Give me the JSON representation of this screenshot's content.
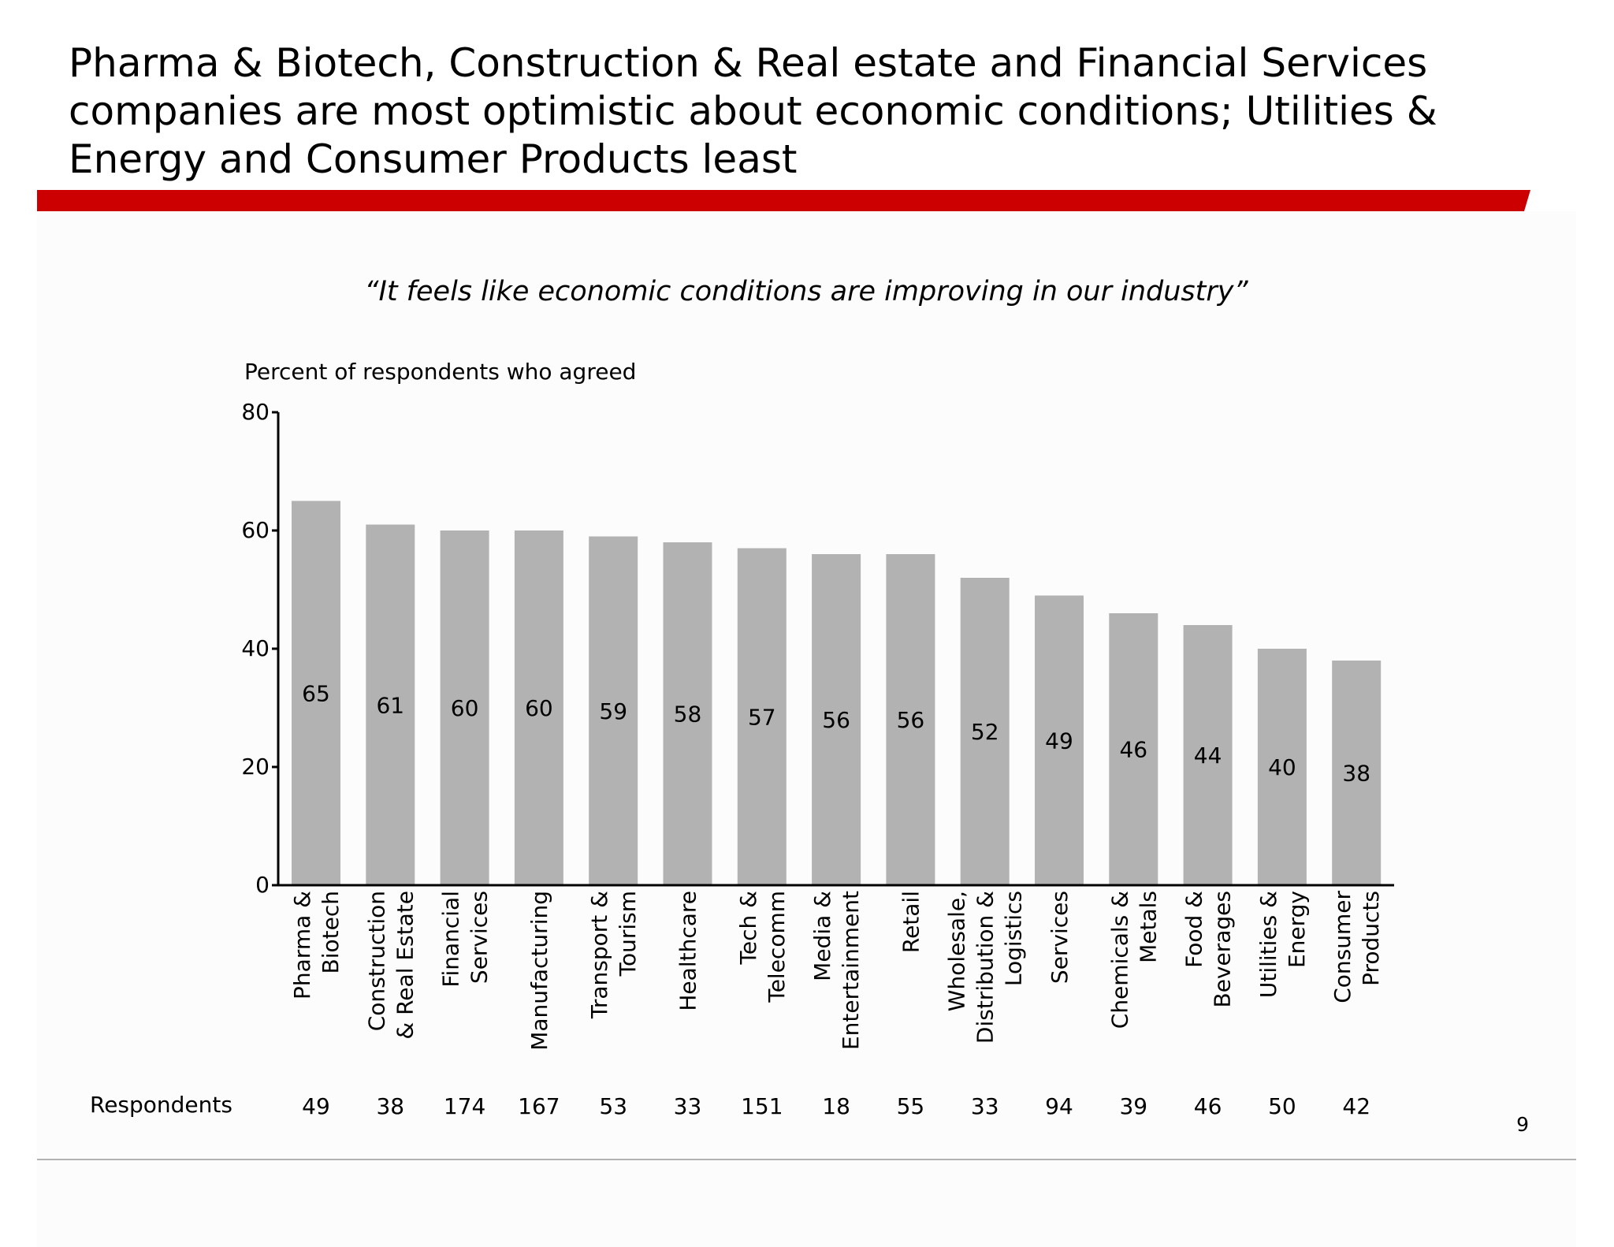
{
  "title": "Pharma & Biotech, Construction & Real estate and Financial Services companies are most optimistic about economic conditions; Utilities & Energy and Consumer Products least",
  "colors": {
    "accent_bar": "#cc0000",
    "bar_fill": "#b3b2b3",
    "rule": "#b3b3b3"
  },
  "page_number": "9",
  "respondents_label": "Respondents",
  "chart_data": {
    "type": "bar",
    "title": "“It feels like economic conditions are improving in our industry”",
    "ylabel": "Percent of respondents who agreed",
    "xlabel": "",
    "ylim": [
      0,
      80
    ],
    "yticks": [
      0,
      20,
      40,
      60,
      80
    ],
    "grid": false,
    "categories": [
      [
        "Pharma &",
        "Biotech"
      ],
      [
        "Construction",
        "& Real Estate"
      ],
      [
        "Financial",
        "Services"
      ],
      [
        "Manufacturing"
      ],
      [
        "Transport &",
        "Tourism"
      ],
      [
        "Healthcare"
      ],
      [
        "Tech &",
        "Telecomm"
      ],
      [
        "Media &",
        "Entertainment"
      ],
      [
        "Retail"
      ],
      [
        "Wholesale,",
        "Distribution &",
        "Logistics"
      ],
      [
        "Services"
      ],
      [
        "Chemicals &",
        "Metals"
      ],
      [
        "Food &",
        "Beverages"
      ],
      [
        "Utilities &",
        "Energy"
      ],
      [
        "Consumer",
        "Products"
      ]
    ],
    "values": [
      65,
      61,
      60,
      60,
      59,
      58,
      57,
      56,
      56,
      52,
      49,
      46,
      44,
      40,
      38
    ],
    "respondents": [
      49,
      38,
      174,
      167,
      53,
      33,
      151,
      18,
      55,
      33,
      94,
      39,
      46,
      50,
      42
    ]
  }
}
